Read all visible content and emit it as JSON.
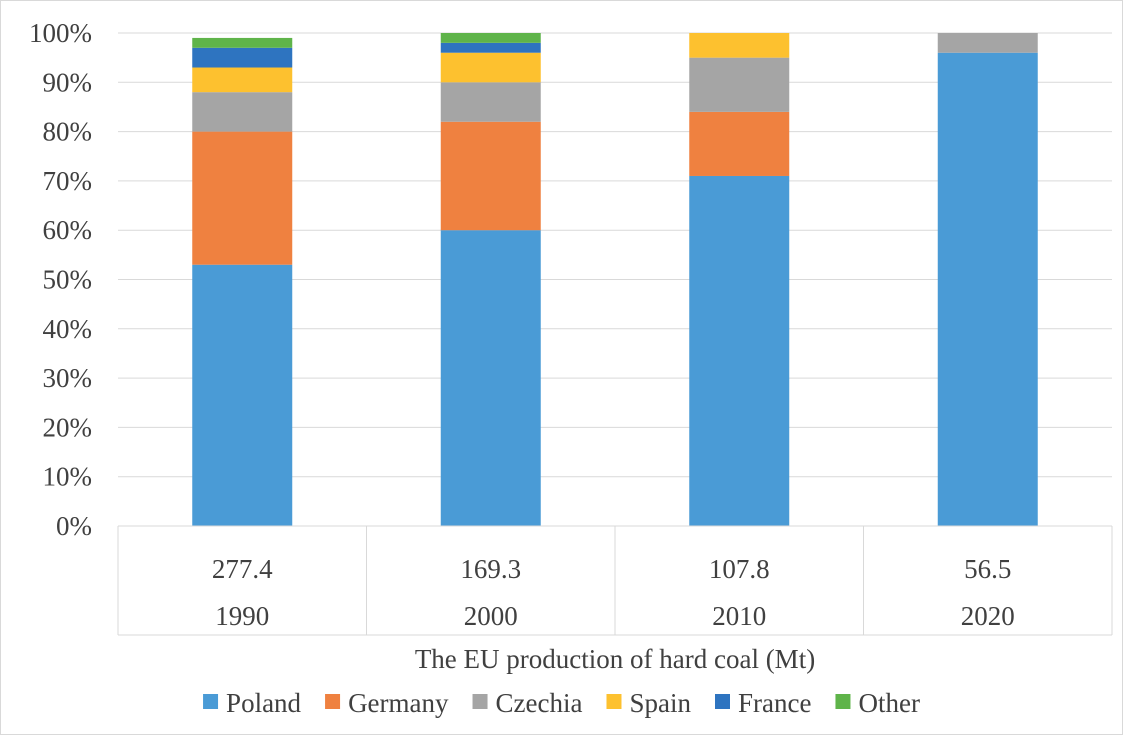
{
  "chart_data": {
    "type": "bar",
    "stacked": true,
    "percent": true,
    "categories": [
      "1990",
      "2000",
      "2010",
      "2020"
    ],
    "category_totals": [
      "277.4",
      "169.3",
      "107.8",
      "56.5"
    ],
    "xlabel": "The EU production of hard coal (Mt)",
    "ylabel": "",
    "ylim": [
      0,
      100
    ],
    "yticks": [
      "0%",
      "10%",
      "20%",
      "30%",
      "40%",
      "50%",
      "60%",
      "70%",
      "80%",
      "90%",
      "100%"
    ],
    "grid": true,
    "legend_position": "bottom",
    "series": [
      {
        "name": "Poland",
        "color": "#4a9bd6",
        "values": [
          53,
          60,
          71,
          96
        ]
      },
      {
        "name": "Germany",
        "color": "#ef8140",
        "values": [
          27,
          22,
          13,
          0
        ]
      },
      {
        "name": "Czechia",
        "color": "#a5a5a5",
        "values": [
          8,
          8,
          11,
          4
        ]
      },
      {
        "name": "Spain",
        "color": "#fdc12f",
        "values": [
          5,
          6,
          5,
          0
        ]
      },
      {
        "name": "France",
        "color": "#2e74c0",
        "values": [
          4,
          2,
          0,
          0
        ]
      },
      {
        "name": "Other",
        "color": "#5fb44a",
        "values": [
          2,
          2,
          0,
          0
        ]
      }
    ]
  }
}
